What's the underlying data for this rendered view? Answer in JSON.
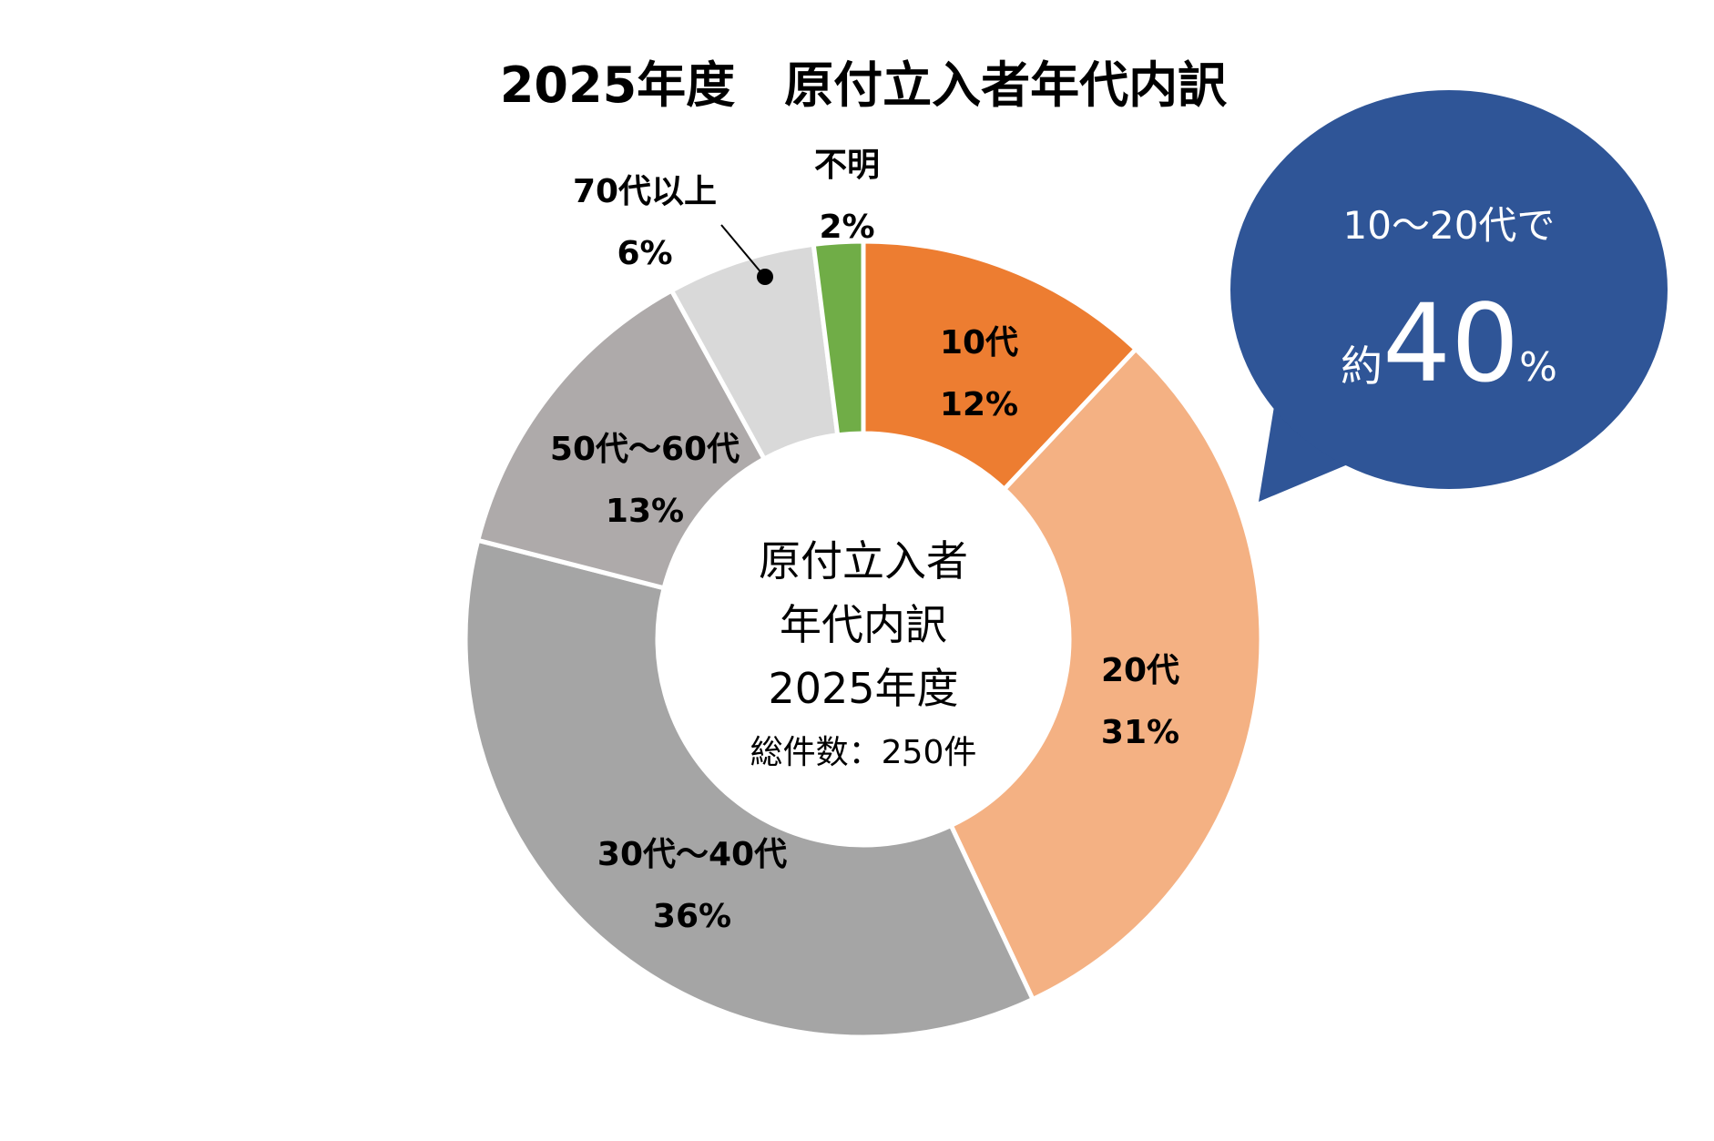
{
  "chart_data": {
    "type": "pie",
    "variant": "donut",
    "title": "2025年度　原付立入者年代内訳",
    "center_label": [
      "原付立入者",
      "年代内訳",
      "2025年度",
      "総件数：250件"
    ],
    "slices": [
      {
        "label": "10代",
        "value": 12,
        "value_text": "12%",
        "color": "#ED7D31"
      },
      {
        "label": "20代",
        "value": 31,
        "value_text": "31%",
        "color": "#F4B183"
      },
      {
        "label": "30代～40代",
        "value": 36,
        "value_text": "36%",
        "color": "#A5A5A5"
      },
      {
        "label": "50代～60代",
        "value": 13,
        "value_text": "13%",
        "color": "#AEAAAA"
      },
      {
        "label": "70代以上",
        "value": 6,
        "value_text": "6%",
        "color": "#D9D9D9"
      },
      {
        "label": "不明",
        "value": 2,
        "value_text": "2%",
        "color": "#70AD47"
      }
    ]
  },
  "callout": {
    "line1": "10～20代で",
    "prefix": "約",
    "number": "40",
    "suffix": "%",
    "color": "#2F5597"
  }
}
